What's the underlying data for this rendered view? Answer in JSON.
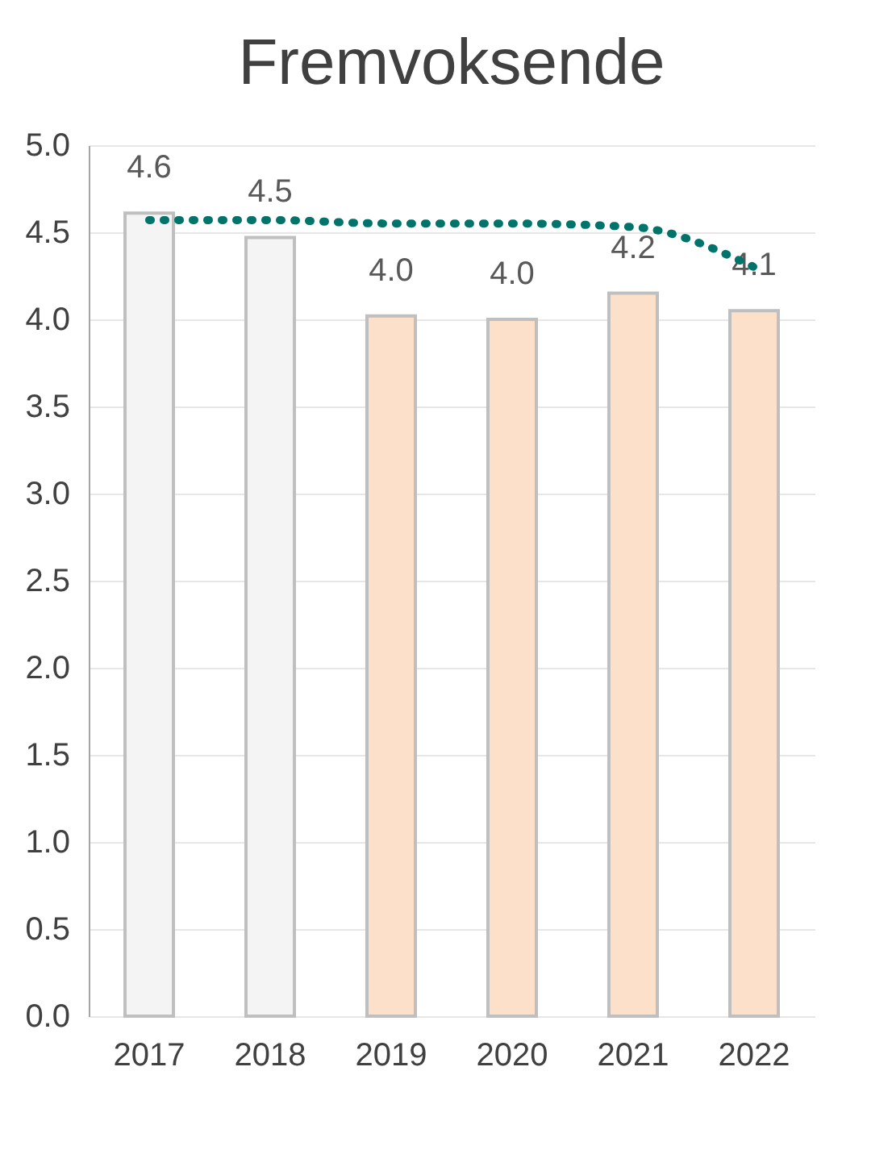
{
  "chart_data": {
    "type": "bar",
    "title": "Fremvoksende",
    "categories": [
      "2017",
      "2018",
      "2019",
      "2020",
      "2021",
      "2022"
    ],
    "series": [
      {
        "colors": [
          "#f4f4f4",
          "#f4f4f4",
          "#fde0c9",
          "#fde0c9",
          "#fde0c9",
          "#fde0c9"
        ],
        "values": [
          4.61,
          4.47,
          4.02,
          4.0,
          4.15,
          4.05
        ],
        "value_labels": [
          "4.6",
          "4.5",
          "4.0",
          "4.0",
          "4.2",
          "4.1"
        ]
      },
      {
        "type": "line",
        "color": "#00736b",
        "line_style": "dotted",
        "values": [
          4.57,
          4.57,
          4.55,
          4.55,
          4.53,
          4.3
        ]
      }
    ],
    "ylim": [
      0,
      5
    ],
    "yticks": [
      {
        "value": 0,
        "label": "0.0"
      },
      {
        "value": 0.5,
        "label": "0.5"
      },
      {
        "value": 1,
        "label": "1.0"
      },
      {
        "value": 1.5,
        "label": "1.5"
      },
      {
        "value": 2,
        "label": "2.0"
      },
      {
        "value": 2.5,
        "label": "2.5"
      },
      {
        "value": 3,
        "label": "3.0"
      },
      {
        "value": 3.5,
        "label": "3.5"
      },
      {
        "value": 4,
        "label": "4.0"
      },
      {
        "value": 4.5,
        "label": "4.5"
      },
      {
        "value": 5,
        "label": "5.0"
      }
    ],
    "grid": "y"
  }
}
